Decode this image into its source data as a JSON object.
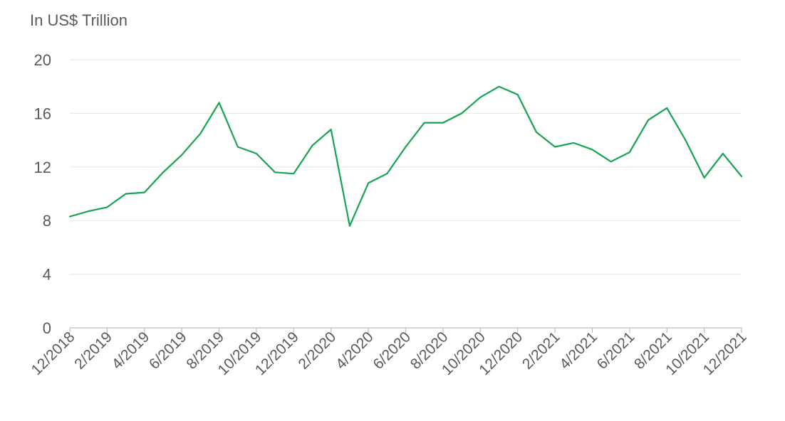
{
  "chart_data": {
    "type": "line",
    "ylabel": "In US$ Trillion",
    "ylim": [
      0,
      20
    ],
    "yticks": [
      "0",
      "4",
      "8",
      "12",
      "16",
      "20"
    ],
    "x_tick_labels": [
      "12/2018",
      "2/2019",
      "4/2019",
      "6/2019",
      "8/2019",
      "10/2019",
      "12/2019",
      "2/2020",
      "4/2020",
      "6/2020",
      "8/2020",
      "10/2020",
      "12/2020",
      "2/2021",
      "4/2021",
      "6/2021",
      "8/2021",
      "10/2021",
      "12/2021"
    ],
    "grid": true,
    "colors": {
      "line": "#16a352"
    },
    "series": [
      {
        "x": [
          "12/2018",
          "1/2019",
          "2/2019",
          "3/2019",
          "4/2019",
          "5/2019",
          "6/2019",
          "7/2019",
          "8/2019",
          "9/2019",
          "10/2019",
          "11/2019",
          "12/2019",
          "1/2020",
          "2/2020",
          "3/2020",
          "4/2020",
          "5/2020",
          "6/2020",
          "7/2020",
          "8/2020",
          "9/2020",
          "10/2020",
          "11/2020",
          "12/2020",
          "1/2021",
          "2/2021",
          "3/2021",
          "4/2021",
          "5/2021",
          "6/2021",
          "7/2021",
          "8/2021",
          "9/2021",
          "10/2021",
          "11/2021",
          "12/2021"
        ],
        "values": [
          8.3,
          8.7,
          9.0,
          10.0,
          10.1,
          11.6,
          12.9,
          14.5,
          16.8,
          13.5,
          13.0,
          11.6,
          11.5,
          13.6,
          14.8,
          7.6,
          10.8,
          11.5,
          13.5,
          15.3,
          15.3,
          16.0,
          17.2,
          18.0,
          17.4,
          14.6,
          13.5,
          13.8,
          13.3,
          12.4,
          13.1,
          15.5,
          16.4,
          14.0,
          11.2,
          13.0,
          11.3
        ]
      }
    ]
  }
}
